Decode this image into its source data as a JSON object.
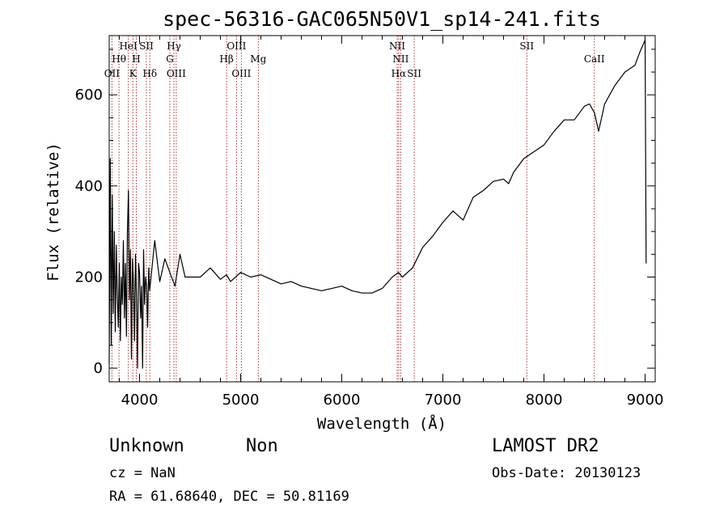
{
  "chart_data": {
    "type": "line",
    "title": "spec-56316-GAC065N50V1_sp14-241.fits",
    "xlabel": "Wavelength (Å)",
    "ylabel": "Flux (relative)",
    "xlim": [
      3700,
      9100
    ],
    "ylim": [
      -30,
      730
    ],
    "xticks": [
      4000,
      5000,
      6000,
      7000,
      8000,
      9000
    ],
    "yticks": [
      0,
      200,
      400,
      600
    ],
    "series": [
      {
        "x": [
          3700,
          3710,
          3720,
          3730,
          3740,
          3750,
          3760,
          3770,
          3780,
          3790,
          3800,
          3810,
          3820,
          3830,
          3840,
          3850,
          3860,
          3870,
          3880,
          3890,
          3900,
          3910,
          3920,
          3930,
          3940,
          3950,
          3960,
          3970,
          3980,
          3990,
          4000,
          4010,
          4020,
          4030,
          4040,
          4050,
          4060,
          4070,
          4080,
          4090,
          4100,
          4150,
          4200,
          4250,
          4300,
          4350,
          4400,
          4450,
          4500,
          4600,
          4700,
          4800,
          4860,
          4900,
          5000,
          5100,
          5200,
          5300,
          5400,
          5500,
          5600,
          5700,
          5800,
          5900,
          6000,
          6100,
          6200,
          6300,
          6400,
          6500,
          6560,
          6600,
          6700,
          6800,
          6900,
          7000,
          7100,
          7200,
          7300,
          7400,
          7500,
          7600,
          7650,
          7700,
          7800,
          7900,
          8000,
          8100,
          8200,
          8300,
          8400,
          8450,
          8500,
          8540,
          8600,
          8700,
          8800,
          8900,
          8950,
          9000,
          9010
        ],
        "y": [
          10,
          460,
          50,
          380,
          120,
          300,
          80,
          270,
          160,
          90,
          230,
          60,
          200,
          140,
          280,
          110,
          230,
          70,
          300,
          390,
          150,
          260,
          20,
          240,
          190,
          60,
          250,
          150,
          0,
          230,
          210,
          110,
          180,
          0,
          260,
          140,
          200,
          180,
          90,
          220,
          170,
          280,
          190,
          240,
          210,
          180,
          250,
          200,
          200,
          200,
          220,
          195,
          205,
          190,
          210,
          200,
          205,
          195,
          185,
          190,
          180,
          175,
          170,
          175,
          180,
          170,
          165,
          165,
          175,
          200,
          210,
          200,
          220,
          265,
          290,
          320,
          345,
          325,
          375,
          390,
          410,
          415,
          405,
          430,
          460,
          475,
          490,
          520,
          545,
          545,
          575,
          580,
          560,
          520,
          580,
          620,
          650,
          665,
          695,
          720,
          230
        ]
      }
    ],
    "lines": [
      {
        "wl": 3727,
        "label": "OII",
        "row": 2
      },
      {
        "wl": 3797,
        "label": "Hθ",
        "row": 1
      },
      {
        "wl": 3889,
        "label": "HeI",
        "row": 0
      },
      {
        "wl": 3934,
        "label": "K",
        "row": 2
      },
      {
        "wl": 3968,
        "label": "H",
        "row": 1
      },
      {
        "wl": 4068,
        "label": "SII",
        "row": 0
      },
      {
        "wl": 4102,
        "label": "Hδ",
        "row": 2
      },
      {
        "wl": 4300,
        "label": "G",
        "row": 1
      },
      {
        "wl": 4340,
        "label": "Hγ",
        "row": 0
      },
      {
        "wl": 4363,
        "label": "OIII",
        "row": 2
      },
      {
        "wl": 4861,
        "label": "Hβ",
        "row": 1
      },
      {
        "wl": 4959,
        "label": "OIII",
        "row": 0
      },
      {
        "wl": 5007,
        "label": "OIII",
        "row": 2
      },
      {
        "wl": 5175,
        "label": "Mg",
        "row": 1
      },
      {
        "wl": 6548,
        "label": "NII",
        "row": 0
      },
      {
        "wl": 6563,
        "label": "Hα",
        "row": 2
      },
      {
        "wl": 6583,
        "label": "NII",
        "row": 1
      },
      {
        "wl": 6717,
        "label": "SII",
        "row": 2
      },
      {
        "wl": 7830,
        "label": "SII",
        "row": 0
      },
      {
        "wl": 8498,
        "label": "CaII",
        "row": 1
      }
    ],
    "grid": false,
    "legend": "none"
  },
  "info": {
    "class": "Unknown",
    "subclass": "Non",
    "survey": "LAMOST DR2",
    "cz": "cz = NaN",
    "obsdate": "Obs-Date: 20130123",
    "coords": "RA =  61.68640, DEC =  50.81169"
  },
  "colors": {
    "spectrum": "#000000",
    "line_markers": "#b03030",
    "axes": "#000000"
  }
}
